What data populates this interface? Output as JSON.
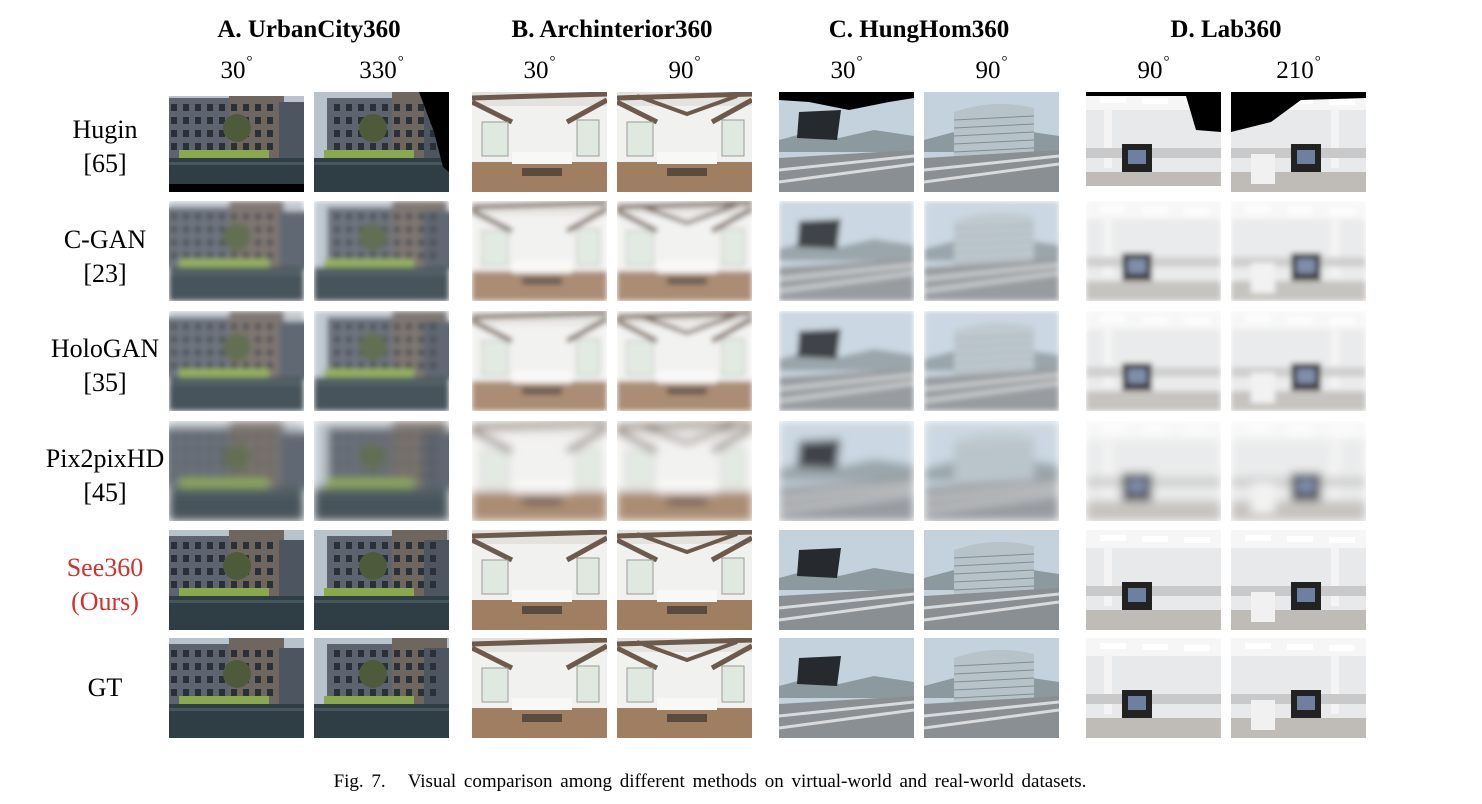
{
  "datasets": [
    {
      "title": "A. UrbanCity360",
      "angles": [
        "30",
        "330"
      ],
      "scene": "urban"
    },
    {
      "title": "B. Archinterior360",
      "angles": [
        "30",
        "90"
      ],
      "scene": "interior"
    },
    {
      "title": "C. HungHom360",
      "angles": [
        "30",
        "90"
      ],
      "scene": "hunghom"
    },
    {
      "title": "D. Lab360",
      "angles": [
        "90",
        "210"
      ],
      "scene": "lab"
    }
  ],
  "degree_symbol": "°",
  "methods": [
    {
      "name": "Hugin",
      "ref": "[65]",
      "highlight": false,
      "quality": "stitched"
    },
    {
      "name": "C-GAN",
      "ref": "[23]",
      "highlight": false,
      "quality": "blurry"
    },
    {
      "name": "HoloGAN",
      "ref": "[35]",
      "highlight": false,
      "quality": "blurry"
    },
    {
      "name": "Pix2pixHD",
      "ref": "[45]",
      "highlight": false,
      "quality": "very-blurry"
    },
    {
      "name": "See360",
      "ref": "(Ours)",
      "highlight": true,
      "quality": "sharp"
    },
    {
      "name": "GT",
      "ref": "",
      "highlight": false,
      "quality": "sharp"
    }
  ],
  "caption": {
    "number": "Fig. 7.",
    "text": "Visual comparison among different methods on virtual-world and real-world datasets."
  },
  "colors": {
    "highlight": "#d0312d",
    "urban_building": "#5d6470",
    "urban_water": "#2e3e44",
    "urban_hedge": "#8aa84c",
    "interior_wall": "#f1f1ef",
    "interior_beam": "#6e5a4c",
    "interior_floor": "#a07e62",
    "hunghom_sky": "#c4d2de",
    "hunghom_road": "#8a8f94",
    "lab_wall": "#e8e9ea",
    "lab_desk": "#222222"
  }
}
